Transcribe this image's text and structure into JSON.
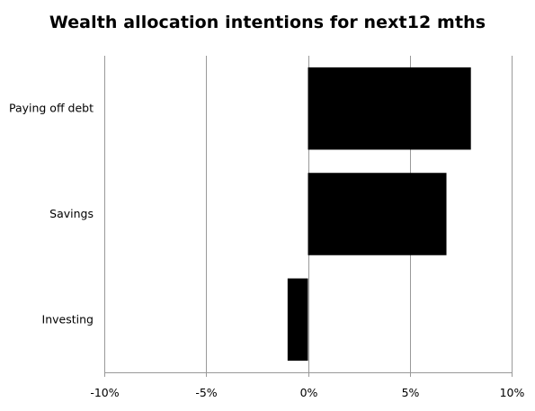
{
  "chart_data": {
    "type": "bar",
    "orientation": "horizontal",
    "title": "Wealth allocation intentions for next12 mths",
    "categories": [
      "Paying off debt",
      "Savings",
      "Investing"
    ],
    "values": [
      8.0,
      6.8,
      -1.0
    ],
    "xlim": [
      -10,
      10
    ],
    "xticks": [
      "-10%",
      "-5%",
      "0%",
      "5%",
      "10%"
    ],
    "xtick_values": [
      -10,
      -5,
      0,
      5,
      10
    ],
    "grid": "vertical",
    "legend": "none",
    "bar_color": "#000000",
    "grid_color": "#999999"
  }
}
